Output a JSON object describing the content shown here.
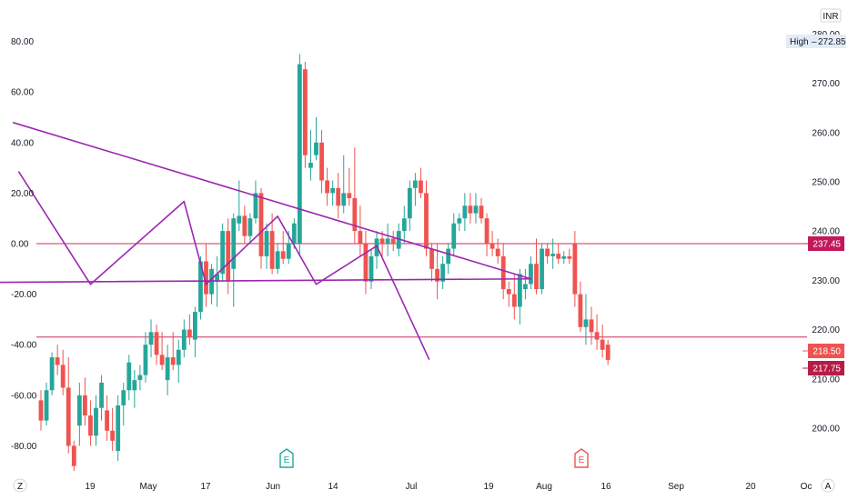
{
  "chart_data": {
    "type": "candlestick",
    "currency": "INR",
    "high_label": "High",
    "high_value": "272.85",
    "colors": {
      "up": "#26a69a",
      "down": "#ef5350",
      "trendline": "#9c27b0",
      "hline": "#cc2f5a",
      "tag_red": "#c2185b",
      "tag_orange": "#ef5350",
      "tag_dark": "#b71c47",
      "axis_text": "#131722"
    },
    "left_axis": {
      "ticks": [
        "80.00",
        "60.00",
        "40.00",
        "20.00",
        "0.00",
        "-20.00",
        "-40.00",
        "-60.00",
        "-80.00"
      ],
      "values": [
        80,
        60,
        40,
        20,
        0,
        -20,
        -40,
        -60,
        -80
      ]
    },
    "right_axis": {
      "ticks": [
        "280.00",
        "270.00",
        "260.00",
        "250.00",
        "240.00",
        "230.00",
        "220.00",
        "210.00",
        "200.00"
      ],
      "values": [
        280,
        270,
        260,
        250,
        240,
        230,
        220,
        210,
        200
      ]
    },
    "x_axis": {
      "ticks": [
        "Z",
        "19",
        "May",
        "17",
        "Jun",
        "14",
        "Jul",
        "19",
        "Aug",
        "16",
        "Sep",
        "20",
        "Oc",
        "A"
      ]
    },
    "price_tags": [
      {
        "label": "237.45",
        "value": 237.45,
        "style": "red"
      },
      {
        "label": "218.50",
        "value": 218.5,
        "style": "orange"
      },
      {
        "label": "217.75",
        "value": 217.75,
        "style": "dark"
      }
    ],
    "horizontal_lines": [
      237.45,
      218.5
    ],
    "events": [
      {
        "label": "E",
        "color": "#26a69a"
      },
      {
        "label": "E",
        "color": "#ef5350"
      }
    ],
    "candles": [
      {
        "o": -62,
        "h": -58,
        "l": -74,
        "c": -70
      },
      {
        "o": -70,
        "h": -55,
        "l": -72,
        "c": -58
      },
      {
        "o": -58,
        "h": -43,
        "l": -60,
        "c": -45
      },
      {
        "o": -45,
        "h": -40,
        "l": -52,
        "c": -48
      },
      {
        "o": -48,
        "h": -42,
        "l": -60,
        "c": -57
      },
      {
        "o": -57,
        "h": -45,
        "l": -83,
        "c": -80
      },
      {
        "o": -80,
        "h": -78,
        "l": -90,
        "c": -88
      },
      {
        "o": -72,
        "h": -55,
        "l": -80,
        "c": -60
      },
      {
        "o": -60,
        "h": -53,
        "l": -72,
        "c": -68
      },
      {
        "o": -68,
        "h": -62,
        "l": -80,
        "c": -76
      },
      {
        "o": -76,
        "h": -60,
        "l": -80,
        "c": -65
      },
      {
        "o": -65,
        "h": -52,
        "l": -70,
        "c": -55
      },
      {
        "o": -66,
        "h": -60,
        "l": -78,
        "c": -74
      },
      {
        "o": -74,
        "h": -65,
        "l": -82,
        "c": -78
      },
      {
        "o": -82,
        "h": -60,
        "l": -86,
        "c": -64
      },
      {
        "o": -64,
        "h": -55,
        "l": -72,
        "c": -58
      },
      {
        "o": -58,
        "h": -44,
        "l": -62,
        "c": -47
      },
      {
        "o": -58,
        "h": -50,
        "l": -65,
        "c": -54
      },
      {
        "o": -54,
        "h": -48,
        "l": -58,
        "c": -52
      },
      {
        "o": -52,
        "h": -35,
        "l": -55,
        "c": -40
      },
      {
        "o": -40,
        "h": -30,
        "l": -45,
        "c": -35
      },
      {
        "o": -35,
        "h": -32,
        "l": -48,
        "c": -44
      },
      {
        "o": -44,
        "h": -35,
        "l": -50,
        "c": -48
      },
      {
        "o": -54,
        "h": -40,
        "l": -60,
        "c": -45
      },
      {
        "o": -45,
        "h": -35,
        "l": -50,
        "c": -48
      },
      {
        "o": -48,
        "h": -38,
        "l": -55,
        "c": -42
      },
      {
        "o": -42,
        "h": -30,
        "l": -45,
        "c": -34
      },
      {
        "o": -34,
        "h": -28,
        "l": -40,
        "c": -37
      },
      {
        "o": -38,
        "h": -25,
        "l": -45,
        "c": -27
      },
      {
        "o": -27,
        "h": -5,
        "l": -30,
        "c": -7
      },
      {
        "o": -7,
        "h": 0,
        "l": -25,
        "c": -20
      },
      {
        "o": -20,
        "h": -8,
        "l": -24,
        "c": -10
      },
      {
        "o": -15,
        "h": -5,
        "l": -25,
        "c": -12
      },
      {
        "o": -12,
        "h": 8,
        "l": -15,
        "c": 5
      },
      {
        "o": 5,
        "h": 10,
        "l": -20,
        "c": -15
      },
      {
        "o": -10,
        "h": 12,
        "l": -25,
        "c": 10
      },
      {
        "o": 8,
        "h": 25,
        "l": 5,
        "c": 11
      },
      {
        "o": 11,
        "h": 15,
        "l": 0,
        "c": 3
      },
      {
        "o": 3,
        "h": 12,
        "l": 0,
        "c": 10
      },
      {
        "o": 10,
        "h": 25,
        "l": 8,
        "c": 20
      },
      {
        "o": 20,
        "h": 22,
        "l": -10,
        "c": -5
      },
      {
        "o": -5,
        "h": 8,
        "l": -10,
        "c": 5
      },
      {
        "o": 5,
        "h": 12,
        "l": -12,
        "c": -10
      },
      {
        "o": -10,
        "h": 0,
        "l": -12,
        "c": -3
      },
      {
        "o": -3,
        "h": 5,
        "l": -8,
        "c": -6
      },
      {
        "o": -6,
        "h": 5,
        "l": -8,
        "c": 0
      },
      {
        "o": 0,
        "h": 10,
        "l": -2,
        "c": 8
      },
      {
        "o": 0,
        "h": 75,
        "l": -5,
        "c": 71
      },
      {
        "o": 69,
        "h": 72,
        "l": 30,
        "c": 35
      },
      {
        "o": 30,
        "h": 45,
        "l": 25,
        "c": 32
      },
      {
        "o": 35,
        "h": 50,
        "l": 33,
        "c": 40
      },
      {
        "o": 40,
        "h": 45,
        "l": 20,
        "c": 25
      },
      {
        "o": 25,
        "h": 30,
        "l": 15,
        "c": 20
      },
      {
        "o": 20,
        "h": 25,
        "l": 15,
        "c": 22
      },
      {
        "o": 22,
        "h": 28,
        "l": 10,
        "c": 15
      },
      {
        "o": 15,
        "h": 35,
        "l": 12,
        "c": 20
      },
      {
        "o": 20,
        "h": 30,
        "l": 15,
        "c": 18
      },
      {
        "o": 18,
        "h": 38,
        "l": 0,
        "c": 5
      },
      {
        "o": 5,
        "h": 15,
        "l": -5,
        "c": 0
      },
      {
        "o": 0,
        "h": 5,
        "l": -20,
        "c": -15
      },
      {
        "o": -15,
        "h": -2,
        "l": -18,
        "c": -5
      },
      {
        "o": -5,
        "h": 5,
        "l": -10,
        "c": 2
      },
      {
        "o": 2,
        "h": 5,
        "l": -5,
        "c": 0
      },
      {
        "o": 0,
        "h": 8,
        "l": -5,
        "c": 2
      },
      {
        "o": 2,
        "h": 5,
        "l": -3,
        "c": 0
      },
      {
        "o": -2,
        "h": 8,
        "l": -5,
        "c": 5
      },
      {
        "o": 5,
        "h": 15,
        "l": 0,
        "c": 10
      },
      {
        "o": 10,
        "h": 25,
        "l": 5,
        "c": 22
      },
      {
        "o": 22,
        "h": 28,
        "l": 15,
        "c": 25
      },
      {
        "o": 25,
        "h": 30,
        "l": 18,
        "c": 20
      },
      {
        "o": 20,
        "h": 25,
        "l": -5,
        "c": -2
      },
      {
        "o": -2,
        "h": 0,
        "l": -15,
        "c": -10
      },
      {
        "o": -10,
        "h": 0,
        "l": -22,
        "c": -15
      },
      {
        "o": -15,
        "h": -5,
        "l": -18,
        "c": -8
      },
      {
        "o": -8,
        "h": 0,
        "l": -12,
        "c": -2
      },
      {
        "o": -2,
        "h": 12,
        "l": -5,
        "c": 8
      },
      {
        "o": 8,
        "h": 12,
        "l": 5,
        "c": 10
      },
      {
        "o": 10,
        "h": 20,
        "l": 5,
        "c": 15
      },
      {
        "o": 15,
        "h": 20,
        "l": 8,
        "c": 12
      },
      {
        "o": 12,
        "h": 20,
        "l": 8,
        "c": 15
      },
      {
        "o": 15,
        "h": 18,
        "l": 8,
        "c": 10
      },
      {
        "o": 10,
        "h": 12,
        "l": -5,
        "c": 0
      },
      {
        "o": 0,
        "h": 5,
        "l": -5,
        "c": -2
      },
      {
        "o": -2,
        "h": 2,
        "l": -8,
        "c": -5
      },
      {
        "o": -5,
        "h": 0,
        "l": -22,
        "c": -18
      },
      {
        "o": -18,
        "h": -15,
        "l": -25,
        "c": -20
      },
      {
        "o": -20,
        "h": -12,
        "l": -30,
        "c": -25
      },
      {
        "o": -25,
        "h": -10,
        "l": -32,
        "c": -12
      },
      {
        "o": -18,
        "h": -10,
        "l": -22,
        "c": -16
      },
      {
        "o": -16,
        "h": -5,
        "l": -18,
        "c": -8
      },
      {
        "o": -8,
        "h": 2,
        "l": -20,
        "c": -18
      },
      {
        "o": -18,
        "h": 0,
        "l": -20,
        "c": -2
      },
      {
        "o": -2,
        "h": 0,
        "l": -8,
        "c": -5
      },
      {
        "o": -5,
        "h": 2,
        "l": -10,
        "c": -4
      },
      {
        "o": -4,
        "h": 0,
        "l": -8,
        "c": -6
      },
      {
        "o": -6,
        "h": -3,
        "l": -8,
        "c": -5
      },
      {
        "o": -5,
        "h": -2,
        "l": -8,
        "c": -6
      },
      {
        "o": 0,
        "h": 5,
        "l": -25,
        "c": -20
      },
      {
        "o": -20,
        "h": -15,
        "l": -35,
        "c": -33
      },
      {
        "o": -33,
        "h": -20,
        "l": -40,
        "c": -30
      },
      {
        "o": -30,
        "h": -25,
        "l": -40,
        "c": -35
      },
      {
        "o": -35,
        "h": -28,
        "l": -42,
        "c": -38
      },
      {
        "o": -38,
        "h": -32,
        "l": -45,
        "c": -42
      },
      {
        "o": -40,
        "h": -38,
        "l": -48,
        "c": -46
      }
    ],
    "trendlines": [
      {
        "x1": -5,
        "y1": 262,
        "x2": 89,
        "y2": 230.3
      },
      {
        "x1": -35,
        "y1": 229.4,
        "x2": 89,
        "y2": 230.3
      },
      {
        "x1": -4,
        "y1": 252,
        "x2": 9,
        "y2": 229.2
      },
      {
        "x1": 9,
        "y1": 229.2,
        "x2": 26,
        "y2": 246
      },
      {
        "x1": 26,
        "y1": 246,
        "x2": 30,
        "y2": 229.2
      },
      {
        "x1": 30,
        "y1": 229.2,
        "x2": 43,
        "y2": 243
      },
      {
        "x1": 43,
        "y1": 243,
        "x2": 50,
        "y2": 229.2
      },
      {
        "x1": 50,
        "y1": 229.2,
        "x2": 61,
        "y2": 237
      },
      {
        "x1": 61,
        "y1": 237,
        "x2": 70.5,
        "y2": 214
      }
    ]
  }
}
